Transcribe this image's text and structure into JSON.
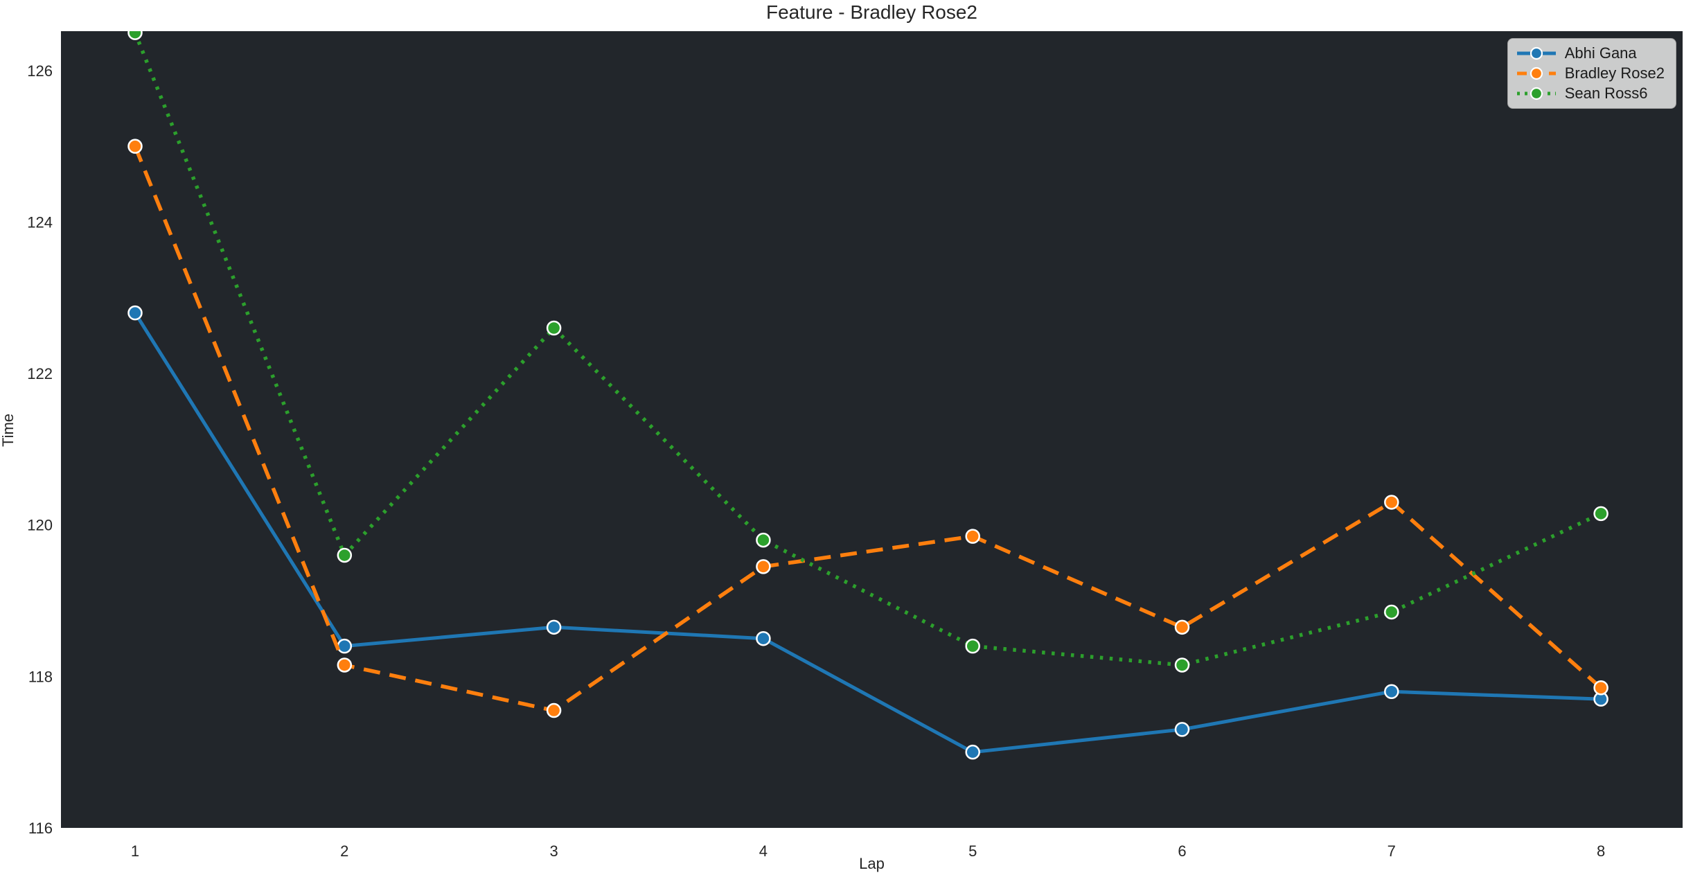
{
  "chart_data": {
    "type": "line",
    "title": "Feature - Bradley Rose2",
    "xlabel": "Lap",
    "ylabel": "Time",
    "x": [
      1,
      2,
      3,
      4,
      5,
      6,
      7,
      8
    ],
    "series": [
      {
        "name": "Abhi Gana",
        "color": "#1f77b4",
        "line_style": "solid",
        "marker": "circle",
        "values": [
          122.8,
          118.4,
          118.65,
          118.5,
          117.0,
          117.3,
          117.8,
          117.7
        ]
      },
      {
        "name": "Bradley Rose2",
        "color": "#ff7f0e",
        "line_style": "dashed",
        "marker": "circle",
        "values": [
          125.0,
          118.15,
          117.55,
          119.45,
          119.85,
          118.65,
          120.3,
          117.85
        ]
      },
      {
        "name": "Sean Ross6",
        "color": "#2ca02c",
        "line_style": "dotted",
        "marker": "circle",
        "values": [
          126.5,
          119.6,
          122.6,
          119.8,
          118.4,
          118.15,
          118.85,
          120.15
        ]
      }
    ],
    "xticks": [
      1,
      2,
      3,
      4,
      5,
      6,
      7,
      8
    ],
    "yticks": [
      116,
      118,
      120,
      122,
      124,
      126
    ],
    "xlim": [
      0.646,
      8.39
    ],
    "ylim": [
      116,
      126.52
    ],
    "grid": false,
    "legend_position": "upper right",
    "plot_bg": "#22262b",
    "legend_bg": "#d5d5d5",
    "text_color": "#262626"
  }
}
